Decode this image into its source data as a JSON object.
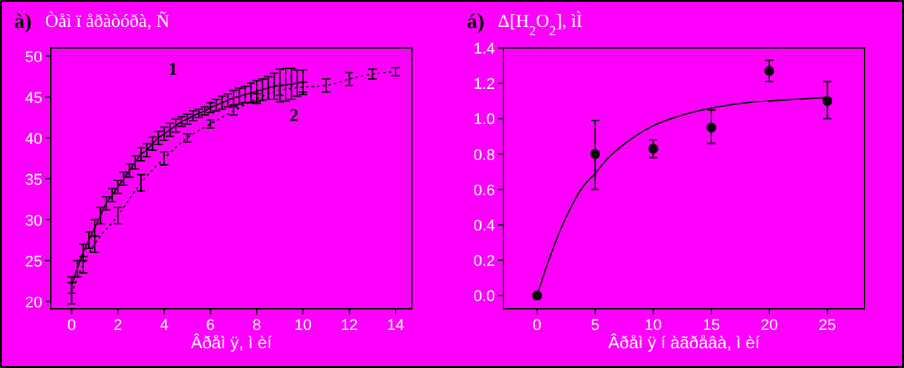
{
  "chart_data": [
    {
      "type": "line",
      "title": "à) Òåì ï åðàòóðà, Ñ",
      "xlabel": "Âðåì ÿ, ì èí",
      "xlim": [
        -0.9,
        14.7
      ],
      "ylim": [
        19.1,
        51
      ],
      "xticks": [
        0,
        2,
        4,
        6,
        8,
        10,
        12,
        14
      ],
      "yticks": [
        20,
        25,
        30,
        35,
        40,
        45,
        50
      ],
      "grid": false,
      "series": [
        {
          "color": "#000000",
          "line_style": "solid",
          "marker": "none",
          "x": [
            0,
            0.25,
            0.5,
            0.75,
            1,
            1.25,
            1.5,
            1.75,
            2,
            2.25,
            2.5,
            2.75,
            3,
            3.25,
            3.5,
            3.75,
            4,
            4.25,
            4.5,
            4.75,
            5,
            5.25,
            5.5,
            5.75,
            6,
            6.25,
            6.5,
            6.75,
            7,
            7.25,
            7.5,
            7.75,
            8,
            8.25,
            8.5,
            8.75,
            9,
            9.25,
            9.5,
            9.75,
            10
          ],
          "values": [
            22,
            24,
            26,
            27.5,
            29,
            30.5,
            32,
            33,
            34,
            35,
            36,
            37,
            38,
            38.5,
            39.3,
            40,
            40.5,
            41,
            41.5,
            42,
            42.3,
            42.7,
            43,
            43.3,
            43.7,
            44,
            44.3,
            44.6,
            44.9,
            45.1,
            45.3,
            45.5,
            45.7,
            45.9,
            46.1,
            46.3,
            46.4,
            46.5,
            46.6,
            46.7,
            46.8
          ],
          "errors": [
            1,
            1,
            1,
            1,
            1,
            1,
            0.8,
            0.8,
            0.8,
            0.8,
            0.8,
            0.8,
            0.8,
            0.8,
            0.8,
            0.8,
            0.8,
            0.8,
            0.8,
            0.6,
            0.6,
            0.6,
            0.5,
            0.5,
            0.6,
            0.7,
            0.8,
            0.8,
            0.9,
            1,
            1,
            1.2,
            1.3,
            1.3,
            1.4,
            1.6,
            2,
            2,
            1.9,
            1.6,
            1.5
          ]
        },
        {
          "color": "#000000",
          "line_style": "dotted",
          "marker": "none",
          "x": [
            0,
            0.5,
            1,
            2,
            3,
            4,
            5,
            6,
            7,
            8,
            9,
            10,
            11,
            12,
            13,
            14
          ],
          "values": [
            21,
            24.5,
            27,
            30.5,
            34.5,
            37.5,
            40,
            41.7,
            43.3,
            44.8,
            45.8,
            46.2,
            46.4,
            47.2,
            47.8,
            48.1
          ],
          "errors": [
            1.3,
            1,
            1,
            1,
            1,
            0.8,
            0.5,
            0.5,
            0.5,
            0.6,
            0.6,
            0.6,
            0.8,
            0.8,
            0.6,
            0.5
          ]
        }
      ],
      "annotations": [
        "1",
        "2"
      ]
    },
    {
      "type": "scatter",
      "title": "á) Δ[H$_{2}$O$_{2}$], ìÌ",
      "xlabel": "Âðåì ÿ í àãðåâà, ì èí",
      "xlim": [
        -2.9,
        28.2
      ],
      "ylim": [
        -0.075,
        1.4
      ],
      "xticks": [
        0,
        5,
        10,
        15,
        20,
        25
      ],
      "yticks": [
        {
          "value": 0,
          "label": "0.0"
        },
        {
          "value": 0.2,
          "label": "0.2"
        },
        {
          "value": 0.4,
          "label": "0.4"
        },
        {
          "value": 0.6,
          "label": "0.6"
        },
        {
          "value": 0.8,
          "label": "0.8"
        },
        {
          "value": 1,
          "label": "1.0"
        },
        {
          "value": 1.2,
          "label": "1.2"
        },
        {
          "value": 1.4,
          "label": "1.4"
        }
      ],
      "grid": false,
      "series": [
        {
          "color": "#000000",
          "marker": "circle",
          "x": [
            0,
            5,
            10,
            15,
            20,
            25
          ],
          "values": [
            0,
            0.8,
            0.83,
            0.95,
            1.27,
            1.1
          ],
          "errors": [
            null,
            [
              0.6,
              0.99
            ],
            [
              0.78,
              0.88
            ],
            [
              0.86,
              1.05
            ],
            [
              1.21,
              1.33
            ],
            [
              1.0,
              1.21
            ]
          ]
        },
        {
          "type": "line",
          "color": "#000000",
          "line_style": "solid",
          "marker": "none",
          "x": [
            0,
            1,
            2,
            3,
            4,
            5,
            6,
            8,
            10,
            12,
            15,
            18,
            20,
            25
          ],
          "values": [
            0,
            0.2,
            0.37,
            0.51,
            0.62,
            0.69,
            0.77,
            0.88,
            0.96,
            1.01,
            1.06,
            1.09,
            1.1,
            1.12
          ]
        }
      ]
    }
  ]
}
